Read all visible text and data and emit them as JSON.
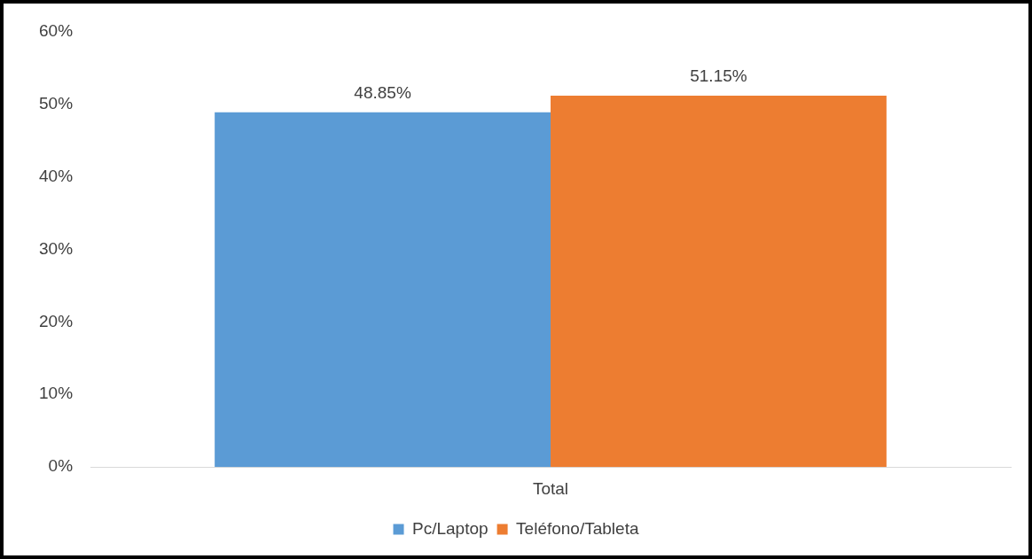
{
  "chart_data": {
    "type": "bar",
    "categories": [
      "Total"
    ],
    "series": [
      {
        "name": "Pc/Laptop",
        "color": "#5b9bd5",
        "values": [
          48.85
        ]
      },
      {
        "name": "Teléfono/Tableta",
        "color": "#ed7d31",
        "values": [
          51.15
        ]
      }
    ],
    "ylim": [
      0,
      60
    ],
    "yticks": [
      {
        "value": 0,
        "label": "0%"
      },
      {
        "value": 10,
        "label": "10%"
      },
      {
        "value": 20,
        "label": "20%"
      },
      {
        "value": 30,
        "label": "30%"
      },
      {
        "value": 40,
        "label": "40%"
      },
      {
        "value": 50,
        "label": "50%"
      },
      {
        "value": 60,
        "label": "60%"
      }
    ],
    "value_labels": [
      "48.85%",
      "51.15%"
    ],
    "grid": false,
    "legend": "bottom"
  }
}
